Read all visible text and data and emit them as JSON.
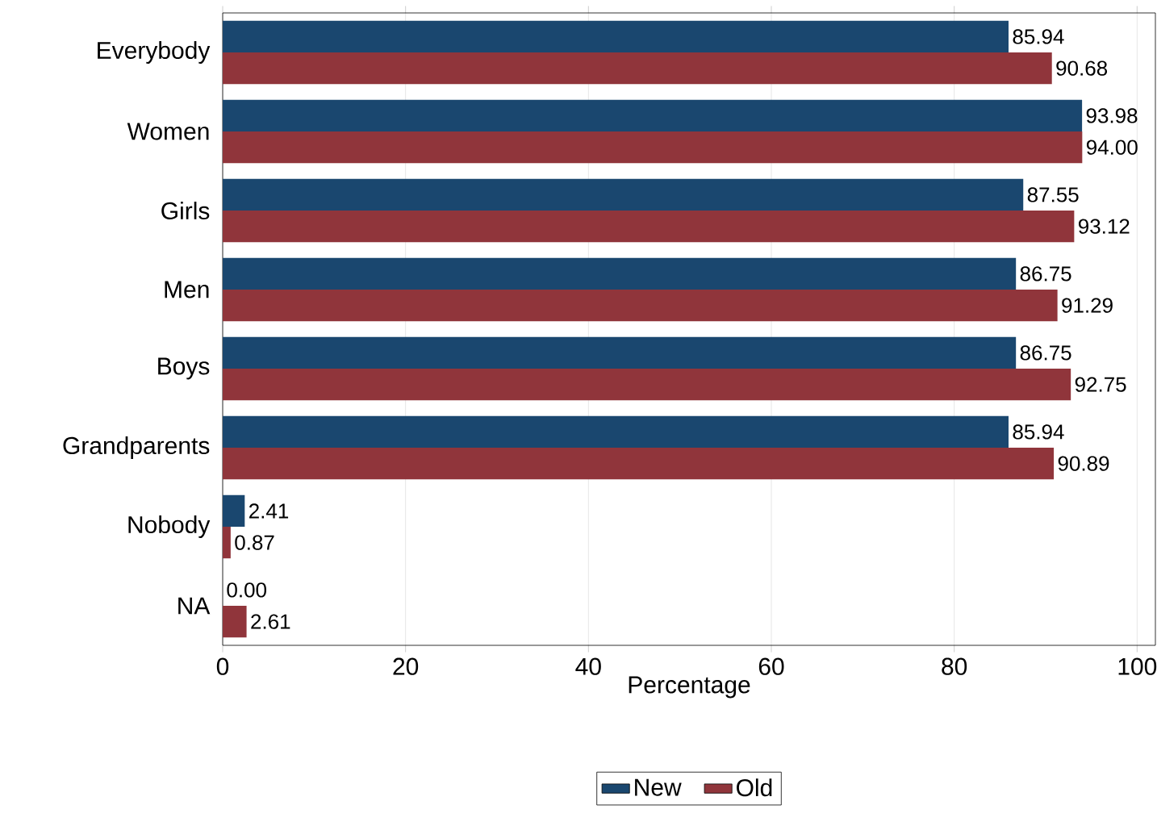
{
  "chart_data": {
    "type": "bar",
    "orientation": "horizontal",
    "xlabel": "Percentage",
    "categories": [
      "Everybody",
      "Women",
      "Girls",
      "Men",
      "Boys",
      "Grandparents",
      "Nobody",
      "NA"
    ],
    "series": [
      {
        "name": "New",
        "color": "#1a476f",
        "values": [
          85.94,
          93.98,
          87.55,
          86.75,
          86.75,
          85.94,
          2.41,
          0.0
        ],
        "value_labels": [
          "85.94",
          "93.98",
          "87.55",
          "86.75",
          "86.75",
          "85.94",
          "2.41",
          "0.00"
        ]
      },
      {
        "name": "Old",
        "color": "#90353b",
        "values": [
          90.68,
          94.0,
          93.12,
          91.29,
          92.75,
          90.89,
          0.87,
          2.61
        ],
        "value_labels": [
          "90.68",
          "94.00",
          "93.12",
          "91.29",
          "92.75",
          "90.89",
          "0.87",
          "2.61"
        ]
      }
    ],
    "xlim": [
      0,
      102
    ],
    "xticks": [
      0,
      20,
      40,
      60,
      80,
      100
    ],
    "grid": "x",
    "legend": "bottom"
  }
}
